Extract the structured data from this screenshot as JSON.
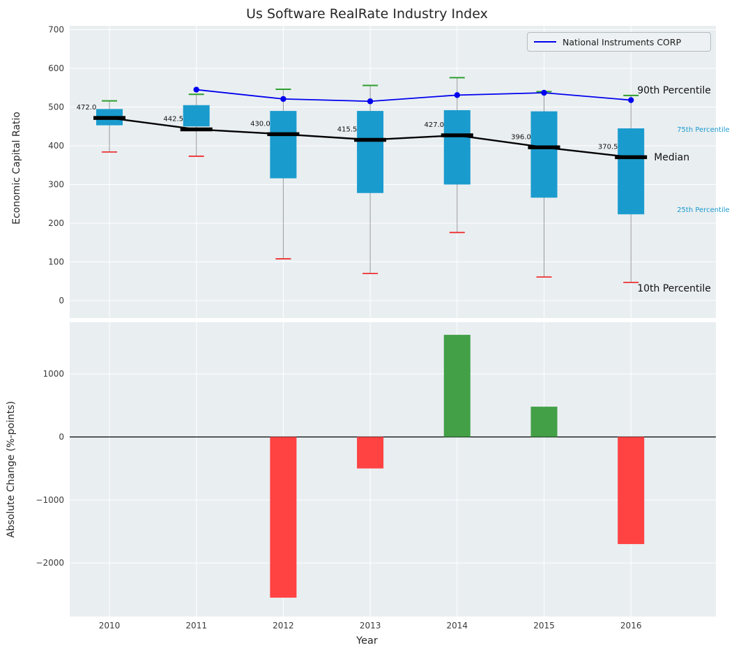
{
  "figure": {
    "title": "Us Software RealRate Industry Index",
    "panel_bg": "#e9eef1",
    "grid_color": "#ffffff"
  },
  "chart_data": [
    {
      "type": "boxplot",
      "title": "Us Software RealRate Industry Index",
      "ylabel": "Economic Capital Ratio",
      "ylim": [
        -45,
        710
      ],
      "yticks": [
        0,
        100,
        200,
        300,
        400,
        500,
        600,
        700
      ],
      "grid": true,
      "categories": [
        "2010",
        "2011",
        "2012",
        "2013",
        "2014",
        "2015",
        "2016"
      ],
      "boxes": [
        {
          "p10": 384,
          "p25": 453,
          "median": 472.0,
          "p75": 495,
          "p90": 516
        },
        {
          "p10": 373,
          "p25": 450,
          "median": 442.5,
          "p75": 505,
          "p90": 533
        },
        {
          "p10": 108,
          "p25": 316,
          "median": 430.0,
          "p75": 490,
          "p90": 546
        },
        {
          "p10": 70,
          "p25": 278,
          "median": 415.5,
          "p75": 490,
          "p90": 556
        },
        {
          "p10": 176,
          "p25": 300,
          "median": 427.0,
          "p75": 492,
          "p90": 576
        },
        {
          "p10": 61,
          "p25": 266,
          "median": 396.0,
          "p75": 489,
          "p90": 540
        },
        {
          "p10": 47,
          "p25": 223,
          "median": 370.5,
          "p75": 445,
          "p90": 530
        }
      ],
      "median_labels": [
        "472.0",
        "442.5",
        "430.0",
        "415.5",
        "427.0",
        "396.0",
        "370.5"
      ],
      "series": [
        {
          "name": "National Instruments CORP",
          "x": [
            "2011",
            "2012",
            "2013",
            "2014",
            "2015",
            "2016"
          ],
          "y": [
            545,
            521,
            515,
            531,
            537,
            518
          ],
          "color": "#0000ee"
        }
      ],
      "legend": {
        "label": "National Instruments CORP",
        "position": "upper right"
      },
      "annotations": [
        {
          "text": "90th Percentile",
          "anchor": "p90",
          "size": "large",
          "color": "#111111"
        },
        {
          "text": "75th Percentile",
          "anchor": "p75",
          "size": "small",
          "color": "#1a9bce"
        },
        {
          "text": "Median",
          "anchor": "median",
          "size": "large",
          "color": "#111111"
        },
        {
          "text": "25th Percentile",
          "anchor": "p25",
          "size": "small",
          "color": "#1a9bce"
        },
        {
          "text": "10th Percentile",
          "anchor": "p10",
          "size": "large",
          "color": "#111111"
        }
      ],
      "colors": {
        "box": "#1a9bce",
        "median": "#000000",
        "p90_cap": "#2e9e2e",
        "p10_cap": "#ee2222",
        "whisker": "#999999"
      }
    },
    {
      "type": "bar",
      "ylabel": "Absolute Change (%-points)",
      "xlabel": "Year",
      "ylim": [
        -2850,
        1820
      ],
      "yticks": [
        -2000,
        -1000,
        0,
        1000
      ],
      "grid": true,
      "categories": [
        "2010",
        "2011",
        "2012",
        "2013",
        "2014",
        "2015",
        "2016"
      ],
      "values": [
        0,
        0,
        -2550,
        -500,
        1620,
        480,
        -1700
      ],
      "colors": {
        "positive": "#43a047",
        "negative": "#ff4242"
      }
    }
  ]
}
